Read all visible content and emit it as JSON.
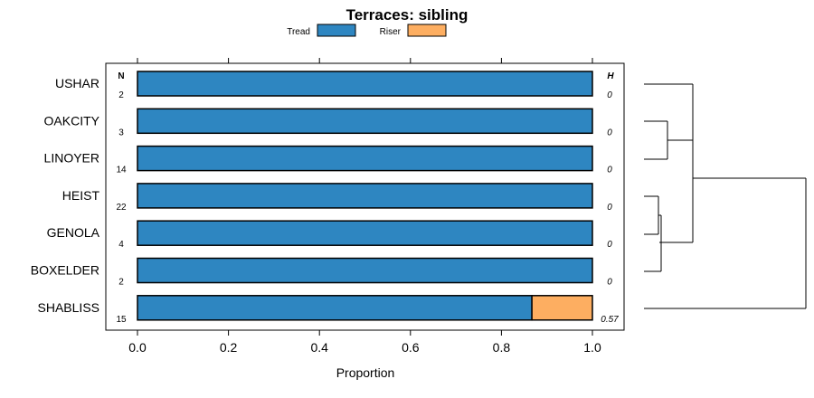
{
  "chart_data": {
    "type": "bar",
    "title": "Terraces: sibling",
    "xlabel": "Proportion",
    "xlim": [
      -0.07,
      1.07
    ],
    "x_ticks": [
      0.0,
      0.2,
      0.4,
      0.6,
      0.8,
      1.0
    ],
    "x_tick_labels": [
      "0.0",
      "0.2",
      "0.4",
      "0.6",
      "0.8",
      "1.0"
    ],
    "legend_position": "top",
    "n_header": "N",
    "h_header": "H",
    "categories": [
      "USHAR",
      "OAKCITY",
      "LINOYER",
      "HEIST",
      "GENOLA",
      "BOXELDER",
      "SHABLISS"
    ],
    "n": [
      "2",
      "3",
      "14",
      "22",
      "4",
      "2",
      "15"
    ],
    "h": [
      "0",
      "0",
      "0",
      "0",
      "0",
      "0",
      "0.57"
    ],
    "series": [
      {
        "name": "Tread",
        "color": "#2E86C1",
        "values": [
          1,
          1,
          1,
          1,
          1,
          1,
          0.867
        ]
      },
      {
        "name": "Riser",
        "color": "#FDAE61",
        "values": [
          0,
          0,
          0,
          0,
          0,
          0,
          0.133
        ]
      }
    ],
    "dendrogram": {
      "merges": [
        [
          "OAKCITY",
          "LINOYER"
        ],
        [
          "HEIST",
          "GENOLA"
        ],
        [
          "group2",
          "BOXELDER"
        ],
        [
          "USHAR",
          "group1"
        ],
        [
          "group4",
          "group3"
        ],
        [
          "group5",
          "SHABLISS"
        ]
      ]
    }
  }
}
